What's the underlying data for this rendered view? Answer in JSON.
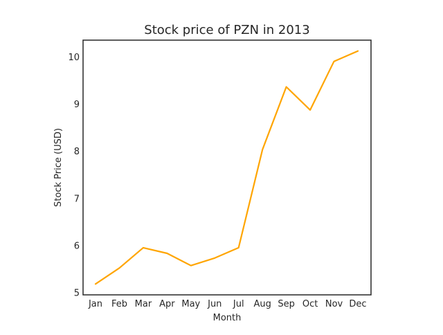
{
  "chart_data": {
    "type": "line",
    "title": "Stock price of PZN in 2013",
    "xlabel": "Month",
    "ylabel": "Stock Price (USD)",
    "categories": [
      "Jan",
      "Feb",
      "Mar",
      "Apr",
      "May",
      "Jun",
      "Jul",
      "Aug",
      "Sep",
      "Oct",
      "Nov",
      "Dec"
    ],
    "series": [
      {
        "values": [
          5.18,
          5.52,
          5.95,
          5.83,
          5.57,
          5.73,
          5.95,
          8.03,
          9.36,
          8.87,
          9.9,
          10.12
        ],
        "color": "#ffa500"
      }
    ],
    "ylim": [
      4.95,
      10.35
    ],
    "yticks": [
      5,
      6,
      7,
      8,
      9,
      10
    ],
    "grid": false,
    "legend": "none"
  }
}
